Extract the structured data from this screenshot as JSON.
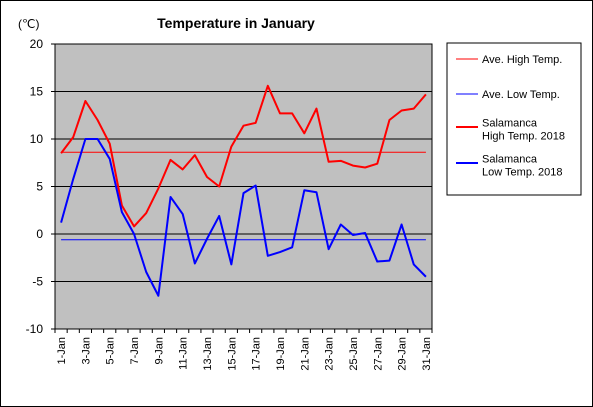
{
  "chart_data": {
    "type": "line",
    "title": "Temperature in January",
    "ylabel": "(℃)",
    "ylim": [
      -10,
      20
    ],
    "yticks": [
      -10,
      -5,
      0,
      5,
      10,
      15,
      20
    ],
    "x": [
      1,
      2,
      3,
      4,
      5,
      6,
      7,
      8,
      9,
      10,
      11,
      12,
      13,
      14,
      15,
      16,
      17,
      18,
      19,
      20,
      21,
      22,
      23,
      24,
      25,
      26,
      27,
      28,
      29,
      30,
      31
    ],
    "xtick_labels": [
      "1-Jan",
      "3-Jan",
      "5-Jan",
      "7-Jan",
      "9-Jan",
      "11-Jan",
      "13-Jan",
      "15-Jan",
      "17-Jan",
      "19-Jan",
      "21-Jan",
      "23-Jan",
      "25-Jan",
      "27-Jan",
      "29-Jan",
      "31-Jan"
    ],
    "grid": true,
    "background": "#c0c0c0",
    "legend_position": "right",
    "series": [
      {
        "name": "Ave. High Temp.",
        "color": "#ff0000",
        "width": 1,
        "values": [
          8.6,
          8.6,
          8.6,
          8.6,
          8.6,
          8.6,
          8.6,
          8.6,
          8.6,
          8.6,
          8.6,
          8.6,
          8.6,
          8.6,
          8.6,
          8.6,
          8.6,
          8.6,
          8.6,
          8.6,
          8.6,
          8.6,
          8.6,
          8.6,
          8.6,
          8.6,
          8.6,
          8.6,
          8.6,
          8.6,
          8.6
        ]
      },
      {
        "name": "Ave. Low Temp.",
        "color": "#0000ff",
        "width": 1,
        "values": [
          -0.6,
          -0.6,
          -0.6,
          -0.6,
          -0.6,
          -0.6,
          -0.6,
          -0.6,
          -0.6,
          -0.6,
          -0.6,
          -0.6,
          -0.6,
          -0.6,
          -0.6,
          -0.6,
          -0.6,
          -0.6,
          -0.6,
          -0.6,
          -0.6,
          -0.6,
          -0.6,
          -0.6,
          -0.6,
          -0.6,
          -0.6,
          -0.6,
          -0.6,
          -0.6,
          -0.6
        ]
      },
      {
        "name": "Salamanca High Temp. 2018",
        "legend_lines": [
          "Salamanca",
          "High Temp. 2018"
        ],
        "color": "#ff0000",
        "width": 2,
        "values": [
          8.5,
          10.2,
          14.0,
          12.0,
          9.5,
          3.0,
          0.8,
          2.2,
          4.8,
          7.8,
          6.8,
          8.3,
          6.0,
          5.0,
          9.2,
          11.4,
          11.7,
          15.6,
          12.7,
          12.7,
          10.6,
          13.2,
          7.6,
          7.7,
          7.2,
          7.0,
          7.4,
          12.0,
          13.0,
          13.2,
          14.7
        ]
      },
      {
        "name": "Salamanca Low Temp. 2018",
        "legend_lines": [
          "Salamanca",
          "Low Temp. 2018"
        ],
        "color": "#0000ff",
        "width": 2,
        "values": [
          1.2,
          5.8,
          10.0,
          10.0,
          7.9,
          2.3,
          0.0,
          -4.0,
          -6.5,
          3.9,
          2.1,
          -3.1,
          -0.5,
          1.9,
          -3.2,
          4.3,
          5.1,
          -2.3,
          -1.9,
          -1.4,
          4.6,
          4.4,
          -1.6,
          1.0,
          -0.1,
          0.1,
          -2.9,
          -2.8,
          1.0,
          -3.2,
          -4.5
        ]
      }
    ]
  }
}
